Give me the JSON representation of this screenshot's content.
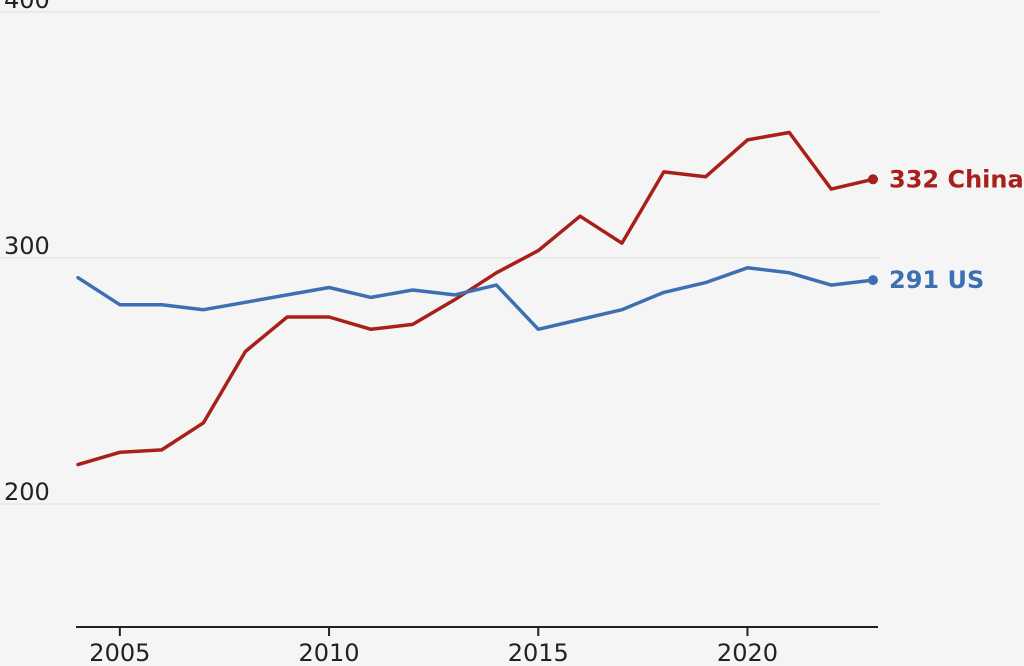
{
  "chart_data": {
    "type": "line",
    "title": "",
    "xlabel": "",
    "ylabel": "",
    "xlim": [
      2004,
      2023
    ],
    "ylim": [
      150,
      400
    ],
    "grid": true,
    "x_ticks": [
      2005,
      2010,
      2015,
      2020
    ],
    "y_ticks": [
      200,
      300,
      400
    ],
    "x": [
      2004,
      2005,
      2006,
      2007,
      2008,
      2009,
      2010,
      2011,
      2012,
      2013,
      2014,
      2015,
      2016,
      2017,
      2018,
      2019,
      2020,
      2021,
      2022,
      2023
    ],
    "series": [
      {
        "name": "China",
        "color": "#a8201a",
        "values": [
          216,
          221,
          222,
          233,
          262,
          276,
          276,
          271,
          273,
          283,
          294,
          303,
          317,
          306,
          335,
          333,
          348,
          351,
          328,
          332
        ],
        "end_label": "332 China"
      },
      {
        "name": "US",
        "color": "#3d70b2",
        "values": [
          292,
          281,
          281,
          279,
          282,
          285,
          288,
          284,
          287,
          285,
          289,
          271,
          275,
          279,
          286,
          290,
          296,
          294,
          289,
          291
        ],
        "end_label": "291 US"
      }
    ]
  }
}
